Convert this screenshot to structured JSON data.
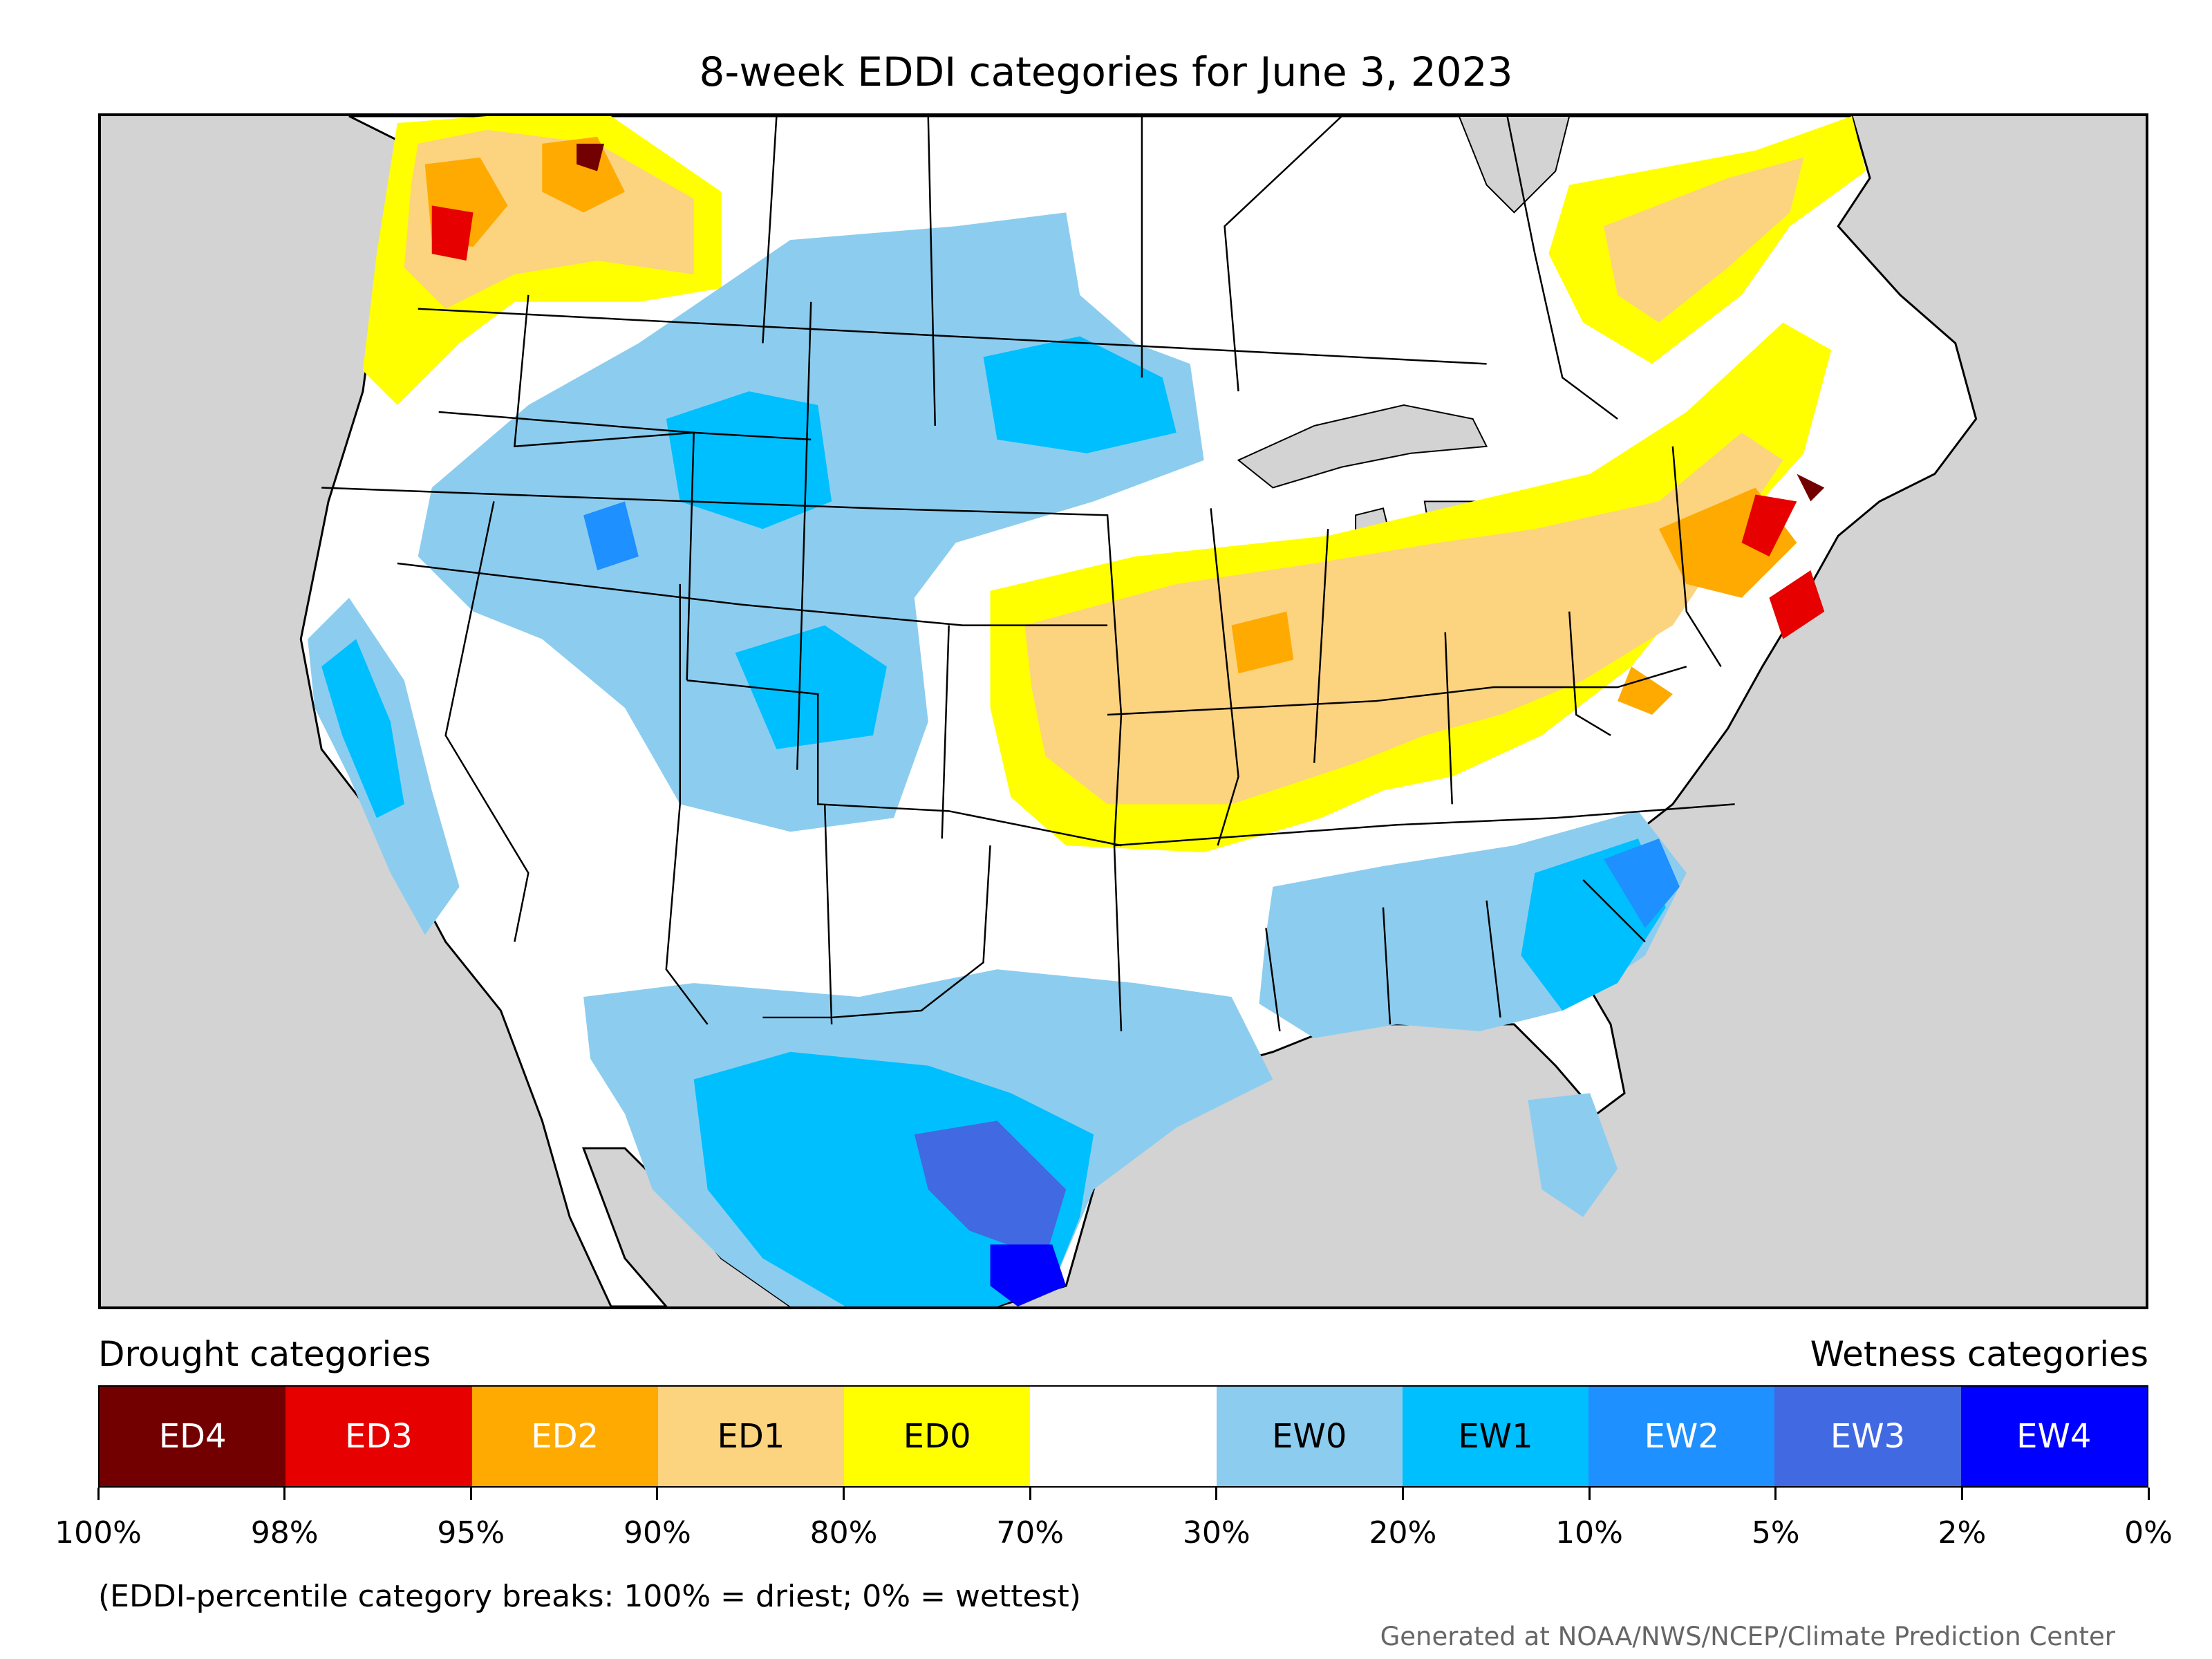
{
  "title": "8-week EDDI categories for June 3, 2023",
  "legend": {
    "drought_heading": "Drought categories",
    "wetness_heading": "Wetness categories",
    "categories": [
      {
        "label": "ED4",
        "color": "#730000",
        "text_color": "#ffffff"
      },
      {
        "label": "ED3",
        "color": "#e60000",
        "text_color": "#ffffff"
      },
      {
        "label": "ED2",
        "color": "#ffaa00",
        "text_color": "#ffffff"
      },
      {
        "label": "ED1",
        "color": "#fcd37f",
        "text_color": "#000000"
      },
      {
        "label": "ED0",
        "color": "#ffff00",
        "text_color": "#000000"
      },
      {
        "label": "",
        "color": "#ffffff",
        "text_color": "#000000"
      },
      {
        "label": "EW0",
        "color": "#8ccdef",
        "text_color": "#000000"
      },
      {
        "label": "EW1",
        "color": "#00bfff",
        "text_color": "#000000"
      },
      {
        "label": "EW2",
        "color": "#1e90ff",
        "text_color": "#ffffff"
      },
      {
        "label": "EW3",
        "color": "#4169e1",
        "text_color": "#ffffff"
      },
      {
        "label": "EW4",
        "color": "#0000ff",
        "text_color": "#ffffff"
      }
    ],
    "ticks": [
      "100%",
      "98%",
      "95%",
      "90%",
      "80%",
      "70%",
      "30%",
      "20%",
      "10%",
      "5%",
      "2%",
      "0%"
    ]
  },
  "note": "(EDDI-percentile category breaks: 100% = driest; 0% = wettest)",
  "credit": "Generated at NOAA/NWS/NCEP/Climate Prediction Center",
  "map": {
    "land_color": "#ffffff",
    "water_color": "#d3d3d3",
    "boundary_color": "#000000"
  }
}
